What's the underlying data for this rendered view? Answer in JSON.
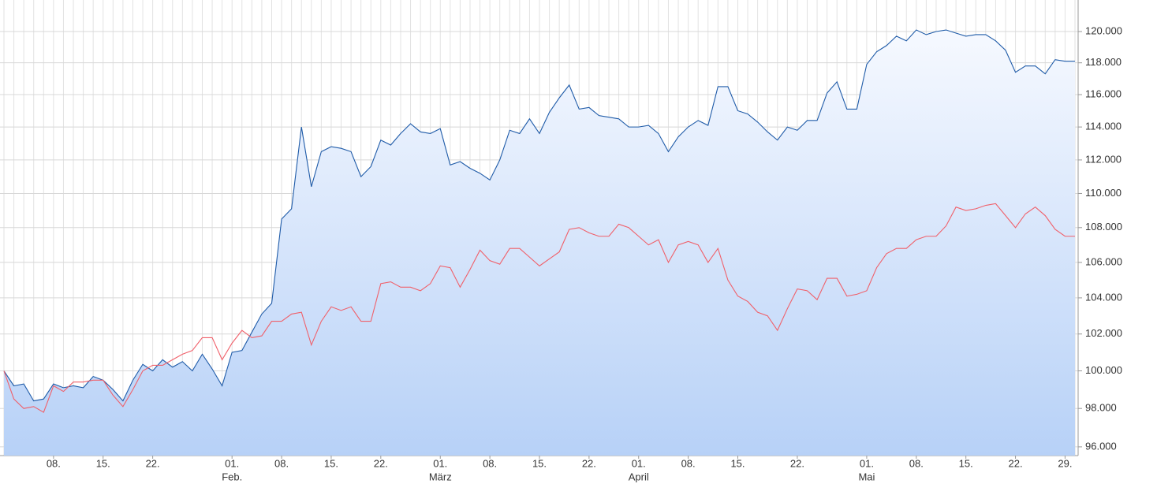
{
  "chart_data": {
    "type": "line",
    "log_scale": true,
    "grid": true,
    "categories": [
      null,
      null,
      null,
      null,
      null,
      "08.",
      null,
      null,
      null,
      null,
      "15.",
      null,
      null,
      null,
      null,
      "22.",
      null,
      null,
      null,
      null,
      null,
      null,
      null,
      "01.",
      null,
      null,
      null,
      null,
      "08.",
      null,
      null,
      null,
      null,
      "15.",
      null,
      null,
      null,
      null,
      "22.",
      null,
      null,
      null,
      null,
      null,
      "01.",
      null,
      null,
      null,
      null,
      "08.",
      null,
      null,
      null,
      null,
      "15.",
      null,
      null,
      null,
      null,
      "22.",
      null,
      null,
      null,
      null,
      "01.",
      null,
      null,
      null,
      null,
      "08.",
      null,
      null,
      null,
      null,
      "15.",
      null,
      null,
      null,
      null,
      null,
      "22.",
      null,
      null,
      null,
      null,
      null,
      null,
      "01.",
      null,
      null,
      null,
      null,
      "08.",
      null,
      null,
      null,
      null,
      "15.",
      null,
      null,
      null,
      null,
      "22.",
      null,
      null,
      null,
      null,
      "29.",
      null
    ],
    "months": [
      null,
      null,
      null,
      null,
      null,
      null,
      null,
      null,
      null,
      null,
      null,
      null,
      null,
      null,
      null,
      null,
      null,
      null,
      null,
      null,
      null,
      null,
      null,
      "Feb.",
      null,
      null,
      null,
      null,
      null,
      null,
      null,
      null,
      null,
      null,
      null,
      null,
      null,
      null,
      null,
      null,
      null,
      null,
      null,
      null,
      "März",
      null,
      null,
      null,
      null,
      null,
      null,
      null,
      null,
      null,
      null,
      null,
      null,
      null,
      null,
      null,
      null,
      null,
      null,
      null,
      "April",
      null,
      null,
      null,
      null,
      null,
      null,
      null,
      null,
      null,
      null,
      null,
      null,
      null,
      null,
      null,
      null,
      null,
      null,
      null,
      null,
      null,
      null,
      "Mai",
      null,
      null,
      null,
      null,
      null,
      null,
      null,
      null,
      null,
      null,
      null,
      null,
      null,
      null,
      null,
      null,
      null,
      null,
      null,
      null,
      null
    ],
    "series": [
      {
        "color": "#1f5ba8",
        "fill": true,
        "values": [
          100000,
          99200,
          99300,
          98400,
          98500,
          99300,
          99100,
          99200,
          99100,
          99700,
          99500,
          99000,
          98400,
          99500,
          100350,
          100000,
          100600,
          100200,
          100500,
          100000,
          100900,
          100100,
          99200,
          101000,
          101100,
          102100,
          103100,
          103700,
          108500,
          109100,
          114000,
          110400,
          112500,
          112800,
          112700,
          112500,
          111000,
          111600,
          113200,
          112900,
          113600,
          114200,
          113700,
          113600,
          113900,
          111700,
          111900,
          111500,
          111200,
          110800,
          112000,
          113800,
          113600,
          114500,
          113600,
          114900,
          115800,
          116600,
          115100,
          115200,
          114700,
          114600,
          114500,
          114000,
          114000,
          114100,
          113600,
          112500,
          113400,
          114000,
          114400,
          114100,
          116500,
          116500,
          115000,
          114800,
          114300,
          113700,
          113200,
          114000,
          113800,
          114400,
          114400,
          116100,
          116800,
          115100,
          115100,
          117900,
          118700,
          119100,
          119700,
          119400,
          120100,
          119800,
          120000,
          120100,
          119900,
          119700,
          119800,
          119800,
          119400,
          118800,
          117400,
          117800,
          117800,
          117300,
          118200,
          118100,
          118100
        ]
      },
      {
        "color": "#f0606a",
        "fill": false,
        "values": [
          100000,
          98500,
          98000,
          98100,
          97800,
          99200,
          98900,
          99400,
          99400,
          99500,
          99500,
          98700,
          98100,
          99000,
          100000,
          100300,
          100300,
          100600,
          100900,
          101100,
          101800,
          101800,
          100600,
          101500,
          102200,
          101800,
          101900,
          102700,
          102700,
          103100,
          103200,
          101400,
          102700,
          103500,
          103300,
          103500,
          102700,
          102700,
          104800,
          104900,
          104600,
          104600,
          104400,
          104800,
          105800,
          105700,
          104600,
          105600,
          106700,
          106100,
          105900,
          106800,
          106800,
          106300,
          105800,
          106200,
          106600,
          107900,
          108000,
          107700,
          107500,
          107500,
          108200,
          108000,
          107500,
          107000,
          107300,
          106000,
          107000,
          107200,
          107000,
          106000,
          106800,
          105000,
          104100,
          103800,
          103200,
          103000,
          102200,
          103400,
          104500,
          104400,
          103900,
          105100,
          105100,
          104100,
          104200,
          104400,
          105700,
          106500,
          106800,
          106800,
          107300,
          107500,
          107500,
          108100,
          109200,
          109000,
          109100,
          109300,
          109400,
          108700,
          108000,
          108800,
          109200,
          108700,
          107900,
          107500,
          107500
        ]
      }
    ],
    "ylim": [
      95550,
      122050
    ],
    "yticks": [
      {
        "value": 96000,
        "label": "96.000"
      },
      {
        "value": 98000,
        "label": "98.000"
      },
      {
        "value": 100000,
        "label": "100.000"
      },
      {
        "value": 102000,
        "label": "102.000"
      },
      {
        "value": 104000,
        "label": "104.000"
      },
      {
        "value": 106000,
        "label": "106.000"
      },
      {
        "value": 108000,
        "label": "108.000"
      },
      {
        "value": 110000,
        "label": "110.000"
      },
      {
        "value": 112000,
        "label": "112.000"
      },
      {
        "value": 114000,
        "label": "114.000"
      },
      {
        "value": 116000,
        "label": "116.000"
      },
      {
        "value": 118000,
        "label": "118.000"
      },
      {
        "value": 120000,
        "label": "120.000"
      }
    ]
  }
}
